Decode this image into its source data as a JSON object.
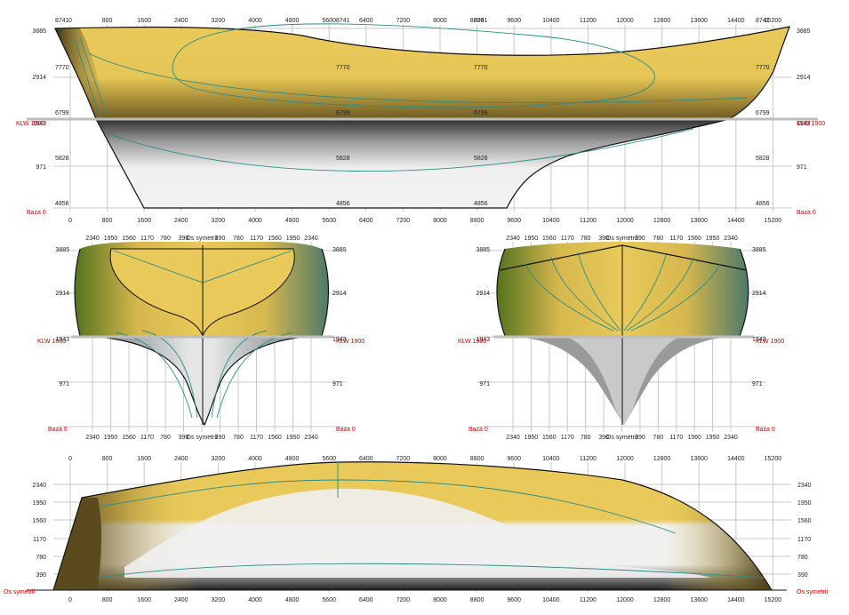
{
  "colors": {
    "hull_above": "#e8c95a",
    "hull_dark": "#5a4a1e",
    "hull_below": "#efefef",
    "contour": "#2a8c86",
    "waterline": "#bdbdbd",
    "red_label": "#d40000"
  },
  "profile": {
    "x_ticks": [
      "0",
      "800",
      "1600",
      "2400",
      "3200",
      "4000",
      "4800",
      "5600",
      "6400",
      "7200",
      "8000",
      "8800",
      "9600",
      "10400",
      "11200",
      "12000",
      "12800",
      "13600",
      "14400",
      "15200"
    ],
    "y_ticks": [
      "3885",
      "2914",
      "1943",
      "971",
      "0"
    ],
    "left_red": [
      "KLW 1900",
      "Baza 0"
    ],
    "right_red": [
      "KLW 1900",
      "Baza 0"
    ],
    "level_labels_left": [
      "8741",
      "7770",
      "6799",
      "5828",
      "4856"
    ],
    "level_labels_mid": [
      "8741",
      "7770",
      "6799",
      "5828",
      "4856"
    ],
    "level_labels_mid2": [
      "8741",
      "7770",
      "6799",
      "5828",
      "4856"
    ],
    "level_labels_right": [
      "8741",
      "7770",
      "6799",
      "5828",
      "4856"
    ]
  },
  "section_left": {
    "top_ticks": [
      "2340",
      "1950",
      "1560",
      "1170",
      "780",
      "390",
      "Os symetrii",
      "390",
      "780",
      "1170",
      "1560",
      "1950",
      "2340"
    ],
    "bottom_ticks": [
      "2340",
      "1950",
      "1560",
      "1170",
      "780",
      "390",
      "Os symetrii",
      "390",
      "780",
      "1170",
      "1560",
      "1950",
      "2340"
    ],
    "y_ticks_left": [
      "3885",
      "2914",
      "1943",
      "971"
    ],
    "y_ticks_right": [
      "3885",
      "2914",
      "1943",
      "971"
    ],
    "red_left": [
      "KLW 1900",
      "Baza 0"
    ],
    "red_right": [
      "KLW 1900",
      "Baza 0"
    ]
  },
  "section_right": {
    "top_ticks": [
      "2340",
      "1950",
      "1560",
      "1170",
      "780",
      "390",
      "Os symetrii",
      "390",
      "780",
      "1170",
      "1560",
      "1950",
      "2340"
    ],
    "bottom_ticks": [
      "2340",
      "1950",
      "1560",
      "1170",
      "780",
      "390",
      "Os symetrii",
      "390",
      "780",
      "1170",
      "1560",
      "1950",
      "2340"
    ],
    "y_ticks_left": [
      "3885",
      "2914",
      "1943",
      "971"
    ],
    "y_ticks_right": [
      "3885",
      "2914",
      "1943",
      "971"
    ],
    "red_left": [
      "KLW 1900",
      "Baza 0"
    ],
    "red_right": [
      "KLW 1900",
      "Baza 0"
    ]
  },
  "plan": {
    "x_ticks": [
      "0",
      "800",
      "1600",
      "2400",
      "3200",
      "4000",
      "4800",
      "5600",
      "6400",
      "7200",
      "8000",
      "8800",
      "9600",
      "10400",
      "11200",
      "12000",
      "12800",
      "13600",
      "14400",
      "15200"
    ],
    "y_ticks": [
      "2340",
      "1950",
      "1560",
      "1170",
      "780",
      "390"
    ],
    "axis_label": "Os symetrii"
  }
}
